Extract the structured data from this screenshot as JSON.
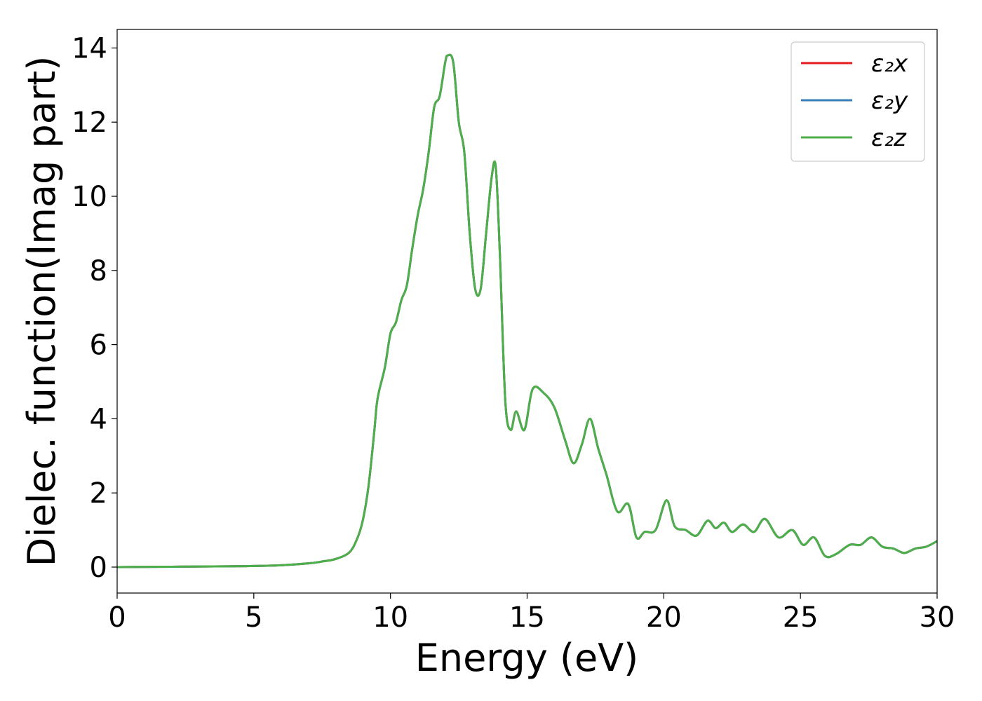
{
  "chart_data": {
    "type": "line",
    "title": "",
    "xlabel": "Energy (eV)",
    "ylabel": "Dielec. function(Imag part)",
    "xlim": [
      0,
      30
    ],
    "ylim": [
      -0.7,
      14.5
    ],
    "xticks": [
      0,
      5,
      10,
      15,
      20,
      25,
      30
    ],
    "yticks": [
      0,
      2,
      4,
      6,
      8,
      10,
      12,
      14
    ],
    "grid": false,
    "legend_position": "top-right",
    "x": [
      0,
      2,
      4,
      5,
      6,
      7,
      7.5,
      8,
      8.5,
      8.8,
      9.0,
      9.2,
      9.4,
      9.5,
      9.6,
      9.8,
      10.0,
      10.2,
      10.4,
      10.6,
      10.8,
      11.0,
      11.2,
      11.4,
      11.6,
      11.8,
      12.0,
      12.1,
      12.3,
      12.5,
      12.7,
      12.9,
      13.1,
      13.3,
      13.5,
      13.7,
      13.85,
      14.0,
      14.2,
      14.4,
      14.6,
      14.9,
      15.2,
      15.6,
      16.0,
      16.4,
      16.7,
      17.0,
      17.3,
      17.6,
      17.9,
      18.3,
      18.7,
      19.0,
      19.3,
      19.7,
      20.1,
      20.4,
      20.8,
      21.2,
      21.6,
      21.9,
      22.2,
      22.5,
      22.9,
      23.3,
      23.7,
      24.2,
      24.7,
      25.1,
      25.5,
      25.9,
      26.3,
      26.8,
      27.2,
      27.6,
      28.0,
      28.4,
      28.8,
      29.2,
      29.6,
      30.0
    ],
    "series": [
      {
        "name": "ε₂x",
        "color": "#e41a1c",
        "y": [
          0.0,
          0.01,
          0.02,
          0.03,
          0.05,
          0.1,
          0.15,
          0.22,
          0.4,
          0.8,
          1.3,
          2.2,
          3.6,
          4.4,
          4.8,
          5.4,
          6.3,
          6.6,
          7.2,
          7.6,
          8.6,
          9.5,
          10.2,
          11.2,
          12.4,
          12.7,
          13.6,
          13.8,
          13.6,
          12.0,
          11.2,
          9.0,
          7.5,
          7.5,
          9.0,
          10.5,
          10.8,
          8.5,
          4.5,
          3.7,
          4.2,
          3.7,
          4.8,
          4.7,
          4.3,
          3.4,
          2.8,
          3.3,
          4.0,
          3.2,
          2.5,
          1.5,
          1.7,
          0.8,
          0.95,
          1.0,
          1.8,
          1.1,
          1.0,
          0.85,
          1.25,
          1.05,
          1.2,
          0.95,
          1.15,
          0.95,
          1.3,
          0.8,
          1.0,
          0.6,
          0.8,
          0.3,
          0.35,
          0.6,
          0.6,
          0.8,
          0.55,
          0.5,
          0.38,
          0.5,
          0.55,
          0.7
        ]
      },
      {
        "name": "ε₂y",
        "color": "#377eb8",
        "y": [
          0.0,
          0.01,
          0.02,
          0.03,
          0.05,
          0.1,
          0.15,
          0.22,
          0.4,
          0.8,
          1.3,
          2.2,
          3.6,
          4.4,
          4.8,
          5.4,
          6.3,
          6.6,
          7.2,
          7.6,
          8.6,
          9.5,
          10.2,
          11.2,
          12.4,
          12.7,
          13.6,
          13.8,
          13.6,
          12.0,
          11.2,
          9.0,
          7.5,
          7.5,
          9.0,
          10.5,
          10.8,
          8.5,
          4.5,
          3.7,
          4.2,
          3.7,
          4.8,
          4.7,
          4.3,
          3.4,
          2.8,
          3.3,
          4.0,
          3.2,
          2.5,
          1.5,
          1.7,
          0.8,
          0.95,
          1.0,
          1.8,
          1.1,
          1.0,
          0.85,
          1.25,
          1.05,
          1.2,
          0.95,
          1.15,
          0.95,
          1.3,
          0.8,
          1.0,
          0.6,
          0.8,
          0.3,
          0.35,
          0.6,
          0.6,
          0.8,
          0.55,
          0.5,
          0.38,
          0.5,
          0.55,
          0.7
        ]
      },
      {
        "name": "ε₂z",
        "color": "#4daf4a",
        "y": [
          0.0,
          0.01,
          0.02,
          0.03,
          0.05,
          0.1,
          0.15,
          0.22,
          0.4,
          0.8,
          1.3,
          2.2,
          3.6,
          4.4,
          4.8,
          5.4,
          6.3,
          6.6,
          7.2,
          7.6,
          8.6,
          9.5,
          10.2,
          11.2,
          12.4,
          12.7,
          13.6,
          13.8,
          13.6,
          12.0,
          11.2,
          9.0,
          7.5,
          7.5,
          9.0,
          10.5,
          10.8,
          8.5,
          4.5,
          3.7,
          4.2,
          3.7,
          4.8,
          4.7,
          4.3,
          3.4,
          2.8,
          3.3,
          4.0,
          3.2,
          2.5,
          1.5,
          1.7,
          0.8,
          0.95,
          1.0,
          1.8,
          1.1,
          1.0,
          0.85,
          1.25,
          1.05,
          1.2,
          0.95,
          1.15,
          0.95,
          1.3,
          0.8,
          1.0,
          0.6,
          0.8,
          0.3,
          0.35,
          0.6,
          0.6,
          0.8,
          0.55,
          0.5,
          0.38,
          0.5,
          0.55,
          0.7
        ]
      }
    ]
  }
}
